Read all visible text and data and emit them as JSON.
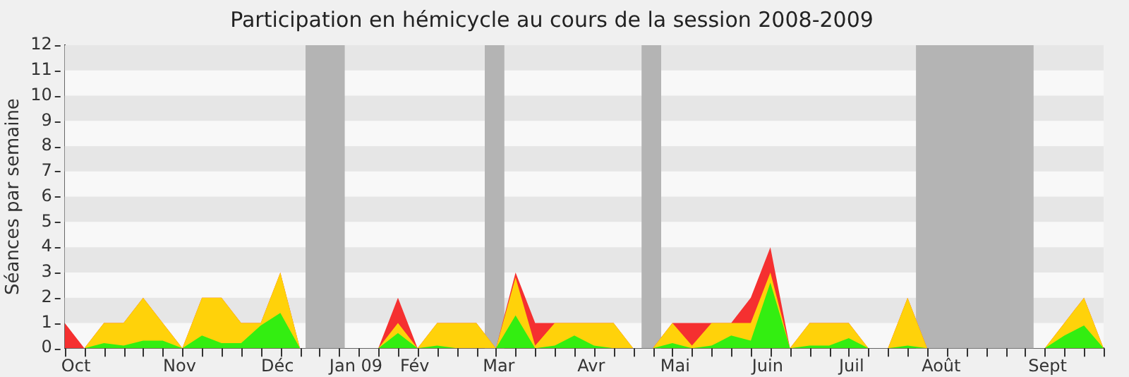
{
  "chart_data": {
    "type": "area",
    "title": "Participation en hémicycle au cours de la session 2008-2009",
    "ylabel": "Séances par semaine",
    "stacked": true,
    "legend": false,
    "x": [
      "2008-09-29",
      "2008-10-06",
      "2008-10-13",
      "2008-10-20",
      "2008-10-27",
      "2008-11-03",
      "2008-11-10",
      "2008-11-17",
      "2008-11-24",
      "2008-12-01",
      "2008-12-08",
      "2008-12-15",
      "2008-12-22",
      "2008-12-29",
      "2009-01-05",
      "2009-01-12",
      "2009-01-19",
      "2009-01-26",
      "2009-02-02",
      "2009-02-09",
      "2009-02-16",
      "2009-02-23",
      "2009-03-02",
      "2009-03-09",
      "2009-03-16",
      "2009-03-23",
      "2009-03-30",
      "2009-04-06",
      "2009-04-13",
      "2009-04-20",
      "2009-04-27",
      "2009-05-04",
      "2009-05-11",
      "2009-05-18",
      "2009-05-25",
      "2009-06-01",
      "2009-06-08",
      "2009-06-15",
      "2009-06-22",
      "2009-06-29",
      "2009-07-06",
      "2009-07-13",
      "2009-07-20",
      "2009-07-27",
      "2009-08-03",
      "2009-08-10",
      "2009-08-17",
      "2009-08-24",
      "2009-08-31",
      "2009-09-07",
      "2009-09-14",
      "2009-09-21",
      "2009-09-28",
      "2009-10-05"
    ],
    "series": [
      {
        "color": "#33ee11",
        "values": [
          0,
          0,
          0.2,
          0.1,
          0.3,
          0.3,
          0,
          0.5,
          0.2,
          0.2,
          0.9,
          1.4,
          0,
          0,
          0,
          0,
          0,
          0.6,
          0,
          0.1,
          0,
          0,
          0,
          1.3,
          0,
          0.1,
          0.5,
          0.1,
          0,
          0,
          0,
          0.2,
          0,
          0.1,
          0.5,
          0.3,
          2.6,
          0,
          0.1,
          0.1,
          0.4,
          0,
          0,
          0.1,
          0,
          0,
          0,
          0,
          0,
          0,
          0,
          0.5,
          0.9,
          0
        ]
      },
      {
        "color": "#ffd20a",
        "values": [
          0,
          0,
          0.8,
          0.9,
          1.7,
          0.7,
          0,
          1.5,
          1.8,
          0.8,
          0.1,
          1.6,
          0,
          0,
          0,
          0,
          0,
          0.4,
          0,
          0.9,
          1,
          1,
          0,
          1.5,
          0.1,
          0.9,
          0.5,
          0.9,
          1,
          0,
          0,
          0.8,
          0.1,
          0.9,
          0.5,
          0.7,
          0.4,
          0,
          0.9,
          0.9,
          0.6,
          0,
          0,
          1.9,
          0,
          0,
          0,
          0,
          0,
          0,
          0,
          0.5,
          1.1,
          0
        ]
      },
      {
        "color": "#f53030",
        "values": [
          1,
          0,
          0,
          0,
          0,
          0,
          0,
          0,
          0,
          0,
          0,
          0,
          0,
          0,
          0,
          0,
          0,
          1,
          0,
          0,
          0,
          0,
          0,
          0.2,
          0.9,
          0,
          0,
          0,
          0,
          0,
          0,
          0,
          0.9,
          0,
          0,
          1,
          1,
          0,
          0,
          0,
          0,
          0,
          0,
          0,
          0,
          0,
          0,
          0,
          0,
          0,
          0,
          0,
          0,
          0
        ]
      }
    ],
    "xlim": [
      "2008-09-29",
      "2009-10-05"
    ],
    "xticks": [
      {
        "value": "2008-09-29",
        "label": null
      },
      {
        "value": "2008-10-03",
        "label": "Oct"
      },
      {
        "value": "2008-10-06",
        "label": null
      },
      {
        "value": "2008-10-13",
        "label": null
      },
      {
        "value": "2008-10-20",
        "label": null
      },
      {
        "value": "2008-10-27",
        "label": null
      },
      {
        "value": "2008-11-03",
        "label": null
      },
      {
        "value": "2008-11-09",
        "label": "Nov"
      },
      {
        "value": "2008-11-10",
        "label": null
      },
      {
        "value": "2008-11-17",
        "label": null
      },
      {
        "value": "2008-11-24",
        "label": null
      },
      {
        "value": "2008-12-01",
        "label": null
      },
      {
        "value": "2008-12-08",
        "label": null
      },
      {
        "value": "2008-12-14",
        "label": "Déc"
      },
      {
        "value": "2008-12-15",
        "label": null
      },
      {
        "value": "2008-12-22",
        "label": null
      },
      {
        "value": "2008-12-29",
        "label": null
      },
      {
        "value": "2009-01-05",
        "label": null
      },
      {
        "value": "2009-01-12",
        "label": null
      },
      {
        "value": "2009-01-11",
        "label": "Jan 09"
      },
      {
        "value": "2009-01-19",
        "label": null
      },
      {
        "value": "2009-01-26",
        "label": null
      },
      {
        "value": "2009-02-01",
        "label": "Fév"
      },
      {
        "value": "2009-02-02",
        "label": null
      },
      {
        "value": "2009-02-09",
        "label": null
      },
      {
        "value": "2009-02-16",
        "label": null
      },
      {
        "value": "2009-02-23",
        "label": null
      },
      {
        "value": "2009-03-02",
        "label": null
      },
      {
        "value": "2009-03-03",
        "label": "Mar"
      },
      {
        "value": "2009-03-09",
        "label": null
      },
      {
        "value": "2009-03-16",
        "label": null
      },
      {
        "value": "2009-03-23",
        "label": null
      },
      {
        "value": "2009-03-30",
        "label": null
      },
      {
        "value": "2009-04-05",
        "label": "Avr"
      },
      {
        "value": "2009-04-06",
        "label": null
      },
      {
        "value": "2009-04-13",
        "label": null
      },
      {
        "value": "2009-04-20",
        "label": null
      },
      {
        "value": "2009-04-27",
        "label": null
      },
      {
        "value": "2009-05-04",
        "label": null
      },
      {
        "value": "2009-05-05",
        "label": "Mai"
      },
      {
        "value": "2009-05-11",
        "label": null
      },
      {
        "value": "2009-05-18",
        "label": null
      },
      {
        "value": "2009-05-25",
        "label": null
      },
      {
        "value": "2009-06-01",
        "label": null
      },
      {
        "value": "2009-06-07",
        "label": "Juin"
      },
      {
        "value": "2009-06-08",
        "label": null
      },
      {
        "value": "2009-06-15",
        "label": null
      },
      {
        "value": "2009-06-22",
        "label": null
      },
      {
        "value": "2009-06-29",
        "label": null
      },
      {
        "value": "2009-07-06",
        "label": null
      },
      {
        "value": "2009-07-07",
        "label": "Juil"
      },
      {
        "value": "2009-07-13",
        "label": null
      },
      {
        "value": "2009-07-20",
        "label": null
      },
      {
        "value": "2009-07-27",
        "label": null
      },
      {
        "value": "2009-08-03",
        "label": null
      },
      {
        "value": "2009-08-08",
        "label": "Août"
      },
      {
        "value": "2009-08-10",
        "label": null
      },
      {
        "value": "2009-08-17",
        "label": null
      },
      {
        "value": "2009-08-24",
        "label": null
      },
      {
        "value": "2009-08-31",
        "label": null
      },
      {
        "value": "2009-09-07",
        "label": null
      },
      {
        "value": "2009-09-14",
        "label": null
      },
      {
        "value": "2009-09-15",
        "label": "Sept"
      },
      {
        "value": "2009-09-21",
        "label": null
      },
      {
        "value": "2009-09-28",
        "label": null
      },
      {
        "value": "2009-10-05",
        "label": null
      }
    ],
    "ylim": [
      0,
      12
    ],
    "yticks": [
      0,
      1,
      2,
      3,
      4,
      5,
      6,
      7,
      8,
      9,
      10,
      11,
      12
    ],
    "bands": [
      {
        "axis": "y",
        "from": 1,
        "to": 2,
        "color": "#e6e6e6"
      },
      {
        "axis": "y",
        "from": 3,
        "to": 4,
        "color": "#e6e6e6"
      },
      {
        "axis": "y",
        "from": 5,
        "to": 6,
        "color": "#e6e6e6"
      },
      {
        "axis": "y",
        "from": 7,
        "to": 8,
        "color": "#e6e6e6"
      },
      {
        "axis": "y",
        "from": 9,
        "to": 10,
        "color": "#e6e6e6"
      },
      {
        "axis": "y",
        "from": 11,
        "to": 12,
        "color": "#e6e6e6"
      },
      {
        "axis": "x",
        "from": "2008-12-24",
        "to": "2009-01-07",
        "color": "#b4b4b4"
      },
      {
        "axis": "x",
        "from": "2009-02-26",
        "to": "2009-03-05",
        "color": "#b4b4b4"
      },
      {
        "axis": "x",
        "from": "2009-04-23",
        "to": "2009-04-30",
        "color": "#b4b4b4"
      },
      {
        "axis": "x",
        "from": "2009-07-30",
        "to": "2009-09-10",
        "color": "#b4b4b4"
      }
    ]
  }
}
